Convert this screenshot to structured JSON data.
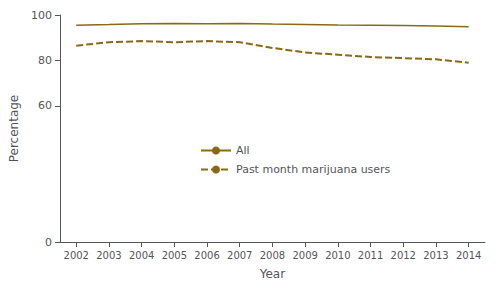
{
  "chart_data": {
    "type": "line",
    "x_label": "Year",
    "y_label": "Percentage",
    "x": [
      2002,
      2003,
      2004,
      2005,
      2006,
      2007,
      2008,
      2009,
      2010,
      2011,
      2012,
      2013,
      2014
    ],
    "series": [
      {
        "name": "All",
        "color": "#8B6914",
        "line_style": "solid",
        "values": [
          95.5,
          95.8,
          96.2,
          96.3,
          96.2,
          96.3,
          96.0,
          95.8,
          95.6,
          95.5,
          95.4,
          95.2,
          94.8
        ]
      },
      {
        "name": "Past month marijuana users",
        "color": "#8B6914",
        "line_style": "dashed",
        "values": [
          86.5,
          88.0,
          88.5,
          88.0,
          88.5,
          88.0,
          85.5,
          83.5,
          82.5,
          81.5,
          81.0,
          80.5,
          79.0
        ]
      }
    ],
    "xlim": [
      2001.5,
      2014.5
    ],
    "xticks": [
      2002,
      2003,
      2004,
      2005,
      2006,
      2007,
      2008,
      2009,
      2010,
      2011,
      2012,
      2013,
      2014
    ],
    "ylim": [
      0,
      100
    ],
    "yticks": [
      0,
      60,
      80,
      100
    ],
    "grid": false,
    "legend": "center"
  }
}
